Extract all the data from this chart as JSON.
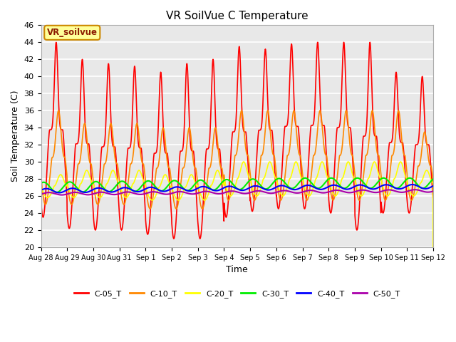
{
  "title": "VR SoilVue C Temperature",
  "xlabel": "Time",
  "ylabel": "Soil Temperature (C)",
  "ylim": [
    20,
    46
  ],
  "yticks": [
    20,
    22,
    24,
    26,
    28,
    30,
    32,
    34,
    36,
    38,
    40,
    42,
    44,
    46
  ],
  "plot_bg_color": "#e8e8e8",
  "series": [
    {
      "label": "C-05_T",
      "color": "#ff0000"
    },
    {
      "label": "C-10_T",
      "color": "#ff8800"
    },
    {
      "label": "C-20_T",
      "color": "#ffff00"
    },
    {
      "label": "C-30_T",
      "color": "#00ee00"
    },
    {
      "label": "C-40_T",
      "color": "#0000ff"
    },
    {
      "label": "C-50_T",
      "color": "#aa00aa"
    }
  ],
  "x_tick_labels": [
    "Aug 28",
    "Aug 29",
    "Aug 30",
    "Aug 31",
    "Sep 1",
    "Sep 2",
    "Sep 3",
    "Sep 4",
    "Sep 5",
    "Sep 6",
    "Sep 7",
    "Sep 8",
    "Sep 9",
    "Sep 10",
    "Sep 11",
    "Sep 12"
  ],
  "annotation_text": "VR_soilvue",
  "annotation_bg": "#ffff99",
  "annotation_border": "#cc8800",
  "figsize": [
    6.4,
    4.8
  ],
  "dpi": 100
}
